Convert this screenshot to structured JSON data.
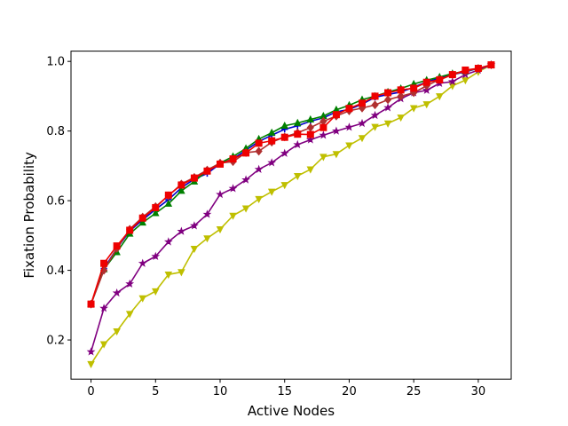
{
  "chart_data": {
    "type": "line",
    "title": "",
    "xlabel": "Active Nodes",
    "ylabel": "Fixation Probability",
    "xlim": [
      -1.55,
      32.55
    ],
    "ylim": [
      0.0875,
      1.0295
    ],
    "xticks": [
      0,
      5,
      10,
      15,
      20,
      25,
      30
    ],
    "yticks": [
      0.2,
      0.4,
      0.6,
      0.8,
      1.0
    ],
    "xtick_labels": [
      "0",
      "5",
      "10",
      "15",
      "20",
      "25",
      "30"
    ],
    "ytick_labels": [
      "0.2",
      "0.4",
      "0.6",
      "0.8",
      "1.0"
    ],
    "grid": false,
    "legend": "none",
    "x": [
      0,
      1,
      2,
      3,
      4,
      5,
      6,
      7,
      8,
      9,
      10,
      11,
      12,
      13,
      14,
      15,
      16,
      17,
      18,
      19,
      20,
      21,
      22,
      23,
      24,
      25,
      26,
      27,
      28,
      29,
      30,
      31
    ],
    "series": [
      {
        "color": "#bfbf00",
        "marker": "triangle-down",
        "values": [
          0.131,
          0.188,
          0.225,
          0.275,
          0.32,
          0.34,
          0.388,
          0.395,
          0.462,
          0.492,
          0.518,
          0.557,
          0.578,
          0.605,
          0.626,
          0.645,
          0.671,
          0.69,
          0.726,
          0.734,
          0.759,
          0.78,
          0.812,
          0.822,
          0.839,
          0.866,
          0.877,
          0.9,
          0.93,
          0.946,
          0.97,
          0.99
        ]
      },
      {
        "color": "#800080",
        "marker": "star",
        "values": [
          0.166,
          0.291,
          0.335,
          0.361,
          0.42,
          0.44,
          0.482,
          0.512,
          0.528,
          0.561,
          0.618,
          0.635,
          0.66,
          0.69,
          0.709,
          0.736,
          0.761,
          0.775,
          0.788,
          0.8,
          0.811,
          0.822,
          0.845,
          0.867,
          0.893,
          0.91,
          0.917,
          0.937,
          0.942,
          0.962,
          0.975,
          0.99
        ]
      },
      {
        "color": "#0000cc",
        "marker": "cross",
        "values": [
          0.303,
          0.405,
          0.463,
          0.513,
          0.545,
          0.575,
          0.603,
          0.637,
          0.662,
          0.678,
          0.706,
          0.72,
          0.745,
          0.77,
          0.788,
          0.805,
          0.815,
          0.828,
          0.838,
          0.855,
          0.862,
          0.877,
          0.897,
          0.905,
          0.912,
          0.926,
          0.941,
          0.952,
          0.962,
          0.97,
          0.98,
          0.99
        ]
      },
      {
        "color": "#008000",
        "marker": "triangle-up",
        "values": [
          0.303,
          0.403,
          0.452,
          0.505,
          0.537,
          0.564,
          0.591,
          0.628,
          0.655,
          0.686,
          0.708,
          0.727,
          0.75,
          0.777,
          0.795,
          0.815,
          0.823,
          0.833,
          0.843,
          0.861,
          0.874,
          0.89,
          0.9,
          0.912,
          0.922,
          0.935,
          0.946,
          0.955,
          0.965,
          0.972,
          0.98,
          0.99
        ]
      },
      {
        "color": "#b03030",
        "marker": "diamond",
        "values": [
          0.303,
          0.4,
          0.463,
          0.518,
          0.553,
          0.583,
          0.614,
          0.648,
          0.667,
          0.688,
          0.708,
          0.712,
          0.738,
          0.742,
          0.768,
          0.783,
          0.795,
          0.81,
          0.828,
          0.843,
          0.858,
          0.866,
          0.875,
          0.89,
          0.9,
          0.91,
          0.93,
          0.948,
          0.962,
          0.972,
          0.98,
          0.99
        ]
      },
      {
        "color": "#ee0000",
        "marker": "square",
        "values": [
          0.303,
          0.42,
          0.47,
          0.515,
          0.55,
          0.58,
          0.616,
          0.645,
          0.665,
          0.685,
          0.705,
          0.72,
          0.737,
          0.765,
          0.772,
          0.782,
          0.791,
          0.79,
          0.81,
          0.847,
          0.865,
          0.88,
          0.9,
          0.91,
          0.918,
          0.923,
          0.94,
          0.947,
          0.962,
          0.975,
          0.98,
          0.99
        ]
      }
    ]
  }
}
